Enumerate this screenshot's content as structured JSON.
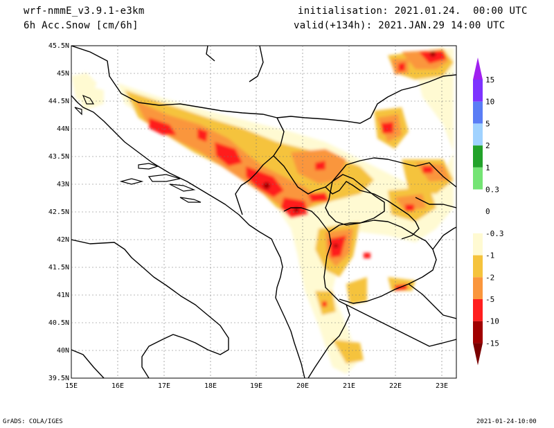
{
  "header": {
    "model": "wrf-nmmE_v3.9.1-e3km",
    "field": "6h Acc.Snow [cm/6h]",
    "init": "initialisation: 2021.01.24.  00:00 UTC",
    "valid": "valid(+134h): 2021.JAN.29 14:00 UTC"
  },
  "map": {
    "lat_labels": [
      "45.5N",
      "45N",
      "44.5N",
      "44N",
      "43.5N",
      "43N",
      "42.5N",
      "42N",
      "41.5N",
      "41N",
      "40.5N",
      "40N",
      "39.5N"
    ],
    "lon_labels": [
      "15E",
      "16E",
      "17E",
      "18E",
      "19E",
      "20E",
      "21E",
      "22E",
      "23E"
    ]
  },
  "colorbar": {
    "labels": [
      "15",
      "10",
      "5",
      "2",
      "1",
      "0.3",
      "0",
      "-0.3",
      "-1",
      "-2",
      "-5",
      "-10",
      "-15"
    ],
    "colors": [
      "#7d33ff",
      "#5a7df5",
      "#a0d2ff",
      "#22a22a",
      "#74e474",
      "#ffffff",
      "#ffffff",
      "#fffad2",
      "#f5c33c",
      "#fa963c",
      "#ff1e1e",
      "#a00000"
    ]
  },
  "footer": {
    "left": "GrADS: COLA/IGES",
    "right": "2021-01-24-10:00"
  }
}
